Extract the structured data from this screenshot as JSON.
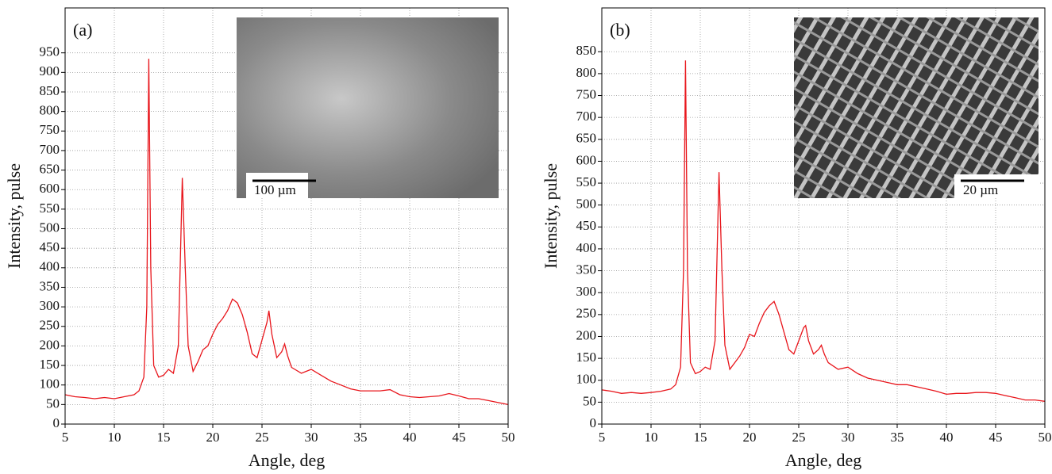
{
  "chart_data": [
    {
      "type": "line",
      "panel_label": "(a)",
      "x_label": "Angle, deg",
      "y_label": "Intensity, pulse",
      "inset_scale_label": "100 µm",
      "grid": true,
      "xlim": [
        5,
        50
      ],
      "xticks": [
        5,
        10,
        15,
        20,
        25,
        30,
        35,
        40,
        45,
        50
      ],
      "ylim": [
        0,
        1065
      ],
      "yticks": [
        0,
        50,
        100,
        150,
        200,
        250,
        300,
        350,
        400,
        450,
        500,
        550,
        600,
        650,
        700,
        750,
        800,
        850,
        900,
        950
      ],
      "x": [
        5,
        6,
        7,
        8,
        9,
        10,
        11,
        12,
        12.5,
        13,
        13.3,
        13.5,
        13.7,
        14,
        14.5,
        15,
        15.5,
        16,
        16.5,
        16.9,
        17.2,
        17.5,
        18,
        18.5,
        19,
        19.5,
        20,
        20.5,
        21,
        21.5,
        22,
        22.5,
        23,
        23.5,
        24,
        24.5,
        25,
        25.5,
        25.7,
        26,
        26.5,
        27,
        27.3,
        27.6,
        28,
        29,
        30,
        31,
        32,
        33,
        34,
        35,
        36,
        37,
        38,
        39,
        40,
        41,
        42,
        43,
        44,
        45,
        46,
        47,
        48,
        49,
        50
      ],
      "series": [
        {
          "color": "#e8151b",
          "values": [
            75,
            70,
            68,
            65,
            68,
            65,
            70,
            75,
            85,
            120,
            300,
            935,
            400,
            150,
            120,
            125,
            140,
            130,
            200,
            630,
            400,
            200,
            135,
            160,
            190,
            200,
            230,
            255,
            270,
            290,
            320,
            310,
            280,
            235,
            180,
            170,
            215,
            260,
            290,
            230,
            170,
            185,
            205,
            175,
            145,
            130,
            140,
            125,
            110,
            100,
            90,
            85,
            85,
            85,
            88,
            75,
            70,
            68,
            70,
            72,
            78,
            72,
            65,
            65,
            60,
            55,
            50
          ]
        }
      ]
    },
    {
      "type": "line",
      "panel_label": "(b)",
      "x_label": "Angle, deg",
      "y_label": "Intensity, pulse",
      "inset_scale_label": "20 µm",
      "grid": true,
      "xlim": [
        5,
        50
      ],
      "xticks": [
        5,
        10,
        15,
        20,
        25,
        30,
        35,
        40,
        45,
        50
      ],
      "ylim": [
        0,
        950
      ],
      "yticks": [
        0,
        50,
        100,
        150,
        200,
        250,
        300,
        350,
        400,
        450,
        500,
        550,
        600,
        650,
        700,
        750,
        800,
        850
      ],
      "x": [
        5,
        6,
        7,
        8,
        9,
        10,
        11,
        12,
        12.5,
        13,
        13.3,
        13.5,
        13.7,
        14,
        14.5,
        15,
        15.5,
        16,
        16.5,
        16.9,
        17.2,
        17.5,
        18,
        18.5,
        19,
        19.5,
        20,
        20.5,
        21,
        21.5,
        22,
        22.5,
        23,
        23.5,
        24,
        24.5,
        25,
        25.5,
        25.7,
        26,
        26.5,
        27,
        27.3,
        27.6,
        28,
        29,
        30,
        31,
        32,
        33,
        34,
        35,
        36,
        37,
        38,
        39,
        40,
        41,
        42,
        43,
        44,
        45,
        46,
        47,
        48,
        49,
        50
      ],
      "series": [
        {
          "color": "#e8151b",
          "values": [
            78,
            75,
            70,
            72,
            70,
            72,
            75,
            80,
            90,
            130,
            350,
            830,
            350,
            140,
            115,
            120,
            130,
            125,
            190,
            575,
            350,
            180,
            125,
            140,
            155,
            175,
            205,
            200,
            230,
            255,
            270,
            280,
            250,
            210,
            170,
            160,
            190,
            220,
            225,
            190,
            160,
            170,
            180,
            160,
            140,
            125,
            130,
            115,
            105,
            100,
            95,
            90,
            90,
            85,
            80,
            75,
            68,
            70,
            70,
            72,
            72,
            70,
            65,
            60,
            55,
            55,
            52
          ]
        }
      ]
    }
  ]
}
